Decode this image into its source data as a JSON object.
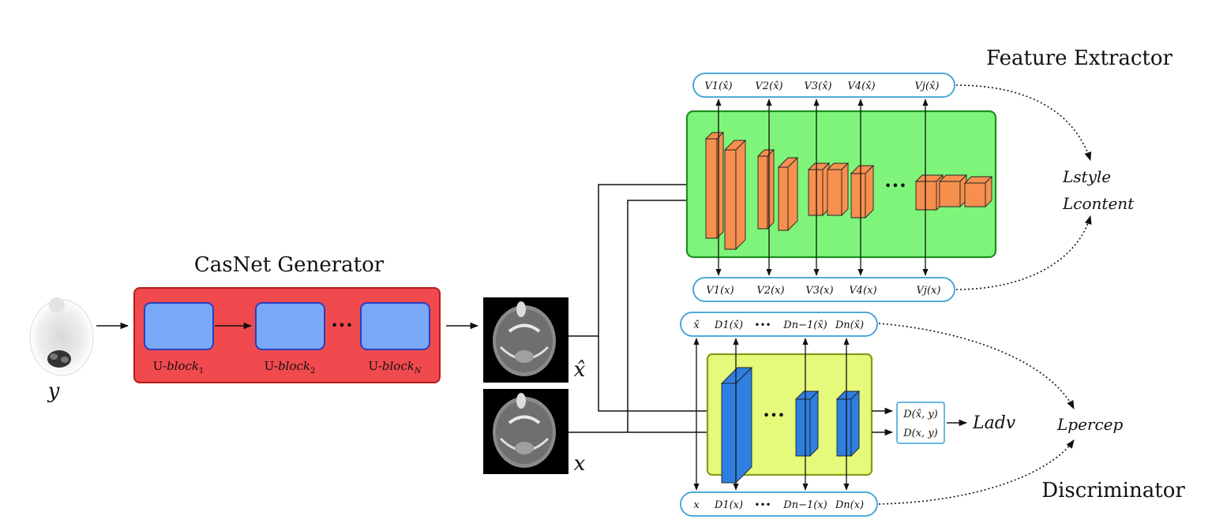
{
  "titles": {
    "generator": "CasNet Generator",
    "feature_extractor": "Feature Extractor",
    "discriminator": "Discriminator"
  },
  "inputs": {
    "y": "y",
    "x_hat": "x̂",
    "x": "x"
  },
  "generator": {
    "blocks": [
      {
        "base": "U-",
        "name": "block",
        "sub": "1"
      },
      {
        "base": "U-",
        "name": "block",
        "sub": "2"
      },
      {
        "base": "U-",
        "name": "block",
        "sub": "N"
      }
    ],
    "ellipsis": "•••"
  },
  "feature_extractor": {
    "top_pill": [
      "V1(x̂)",
      "V2(x̂)",
      "V3(x̂)",
      "V4(x̂)",
      "Vj(x̂)"
    ],
    "bottom_pill": [
      "V1(x)",
      "V2(x)",
      "V3(x)",
      "V4(x)",
      "Vj(x)"
    ],
    "ellipsis": "•••"
  },
  "discriminator": {
    "top_pill": [
      "x̂",
      "D1(x̂)",
      "•••",
      "Dn−1(x̂)",
      "Dn(x̂)"
    ],
    "bottom_pill": [
      "x",
      "D1(x)",
      "•••",
      "Dn−1(x)",
      "Dn(x)"
    ],
    "outputs": [
      "D(x̂, y)",
      "D(x, y)"
    ],
    "ellipsis": "•••"
  },
  "losses": {
    "style": "Lstyle",
    "content": "Lcontent",
    "adv": "Ladv",
    "percep": "Lpercep"
  },
  "colors": {
    "generator_bg": "#f0494e",
    "ublock": "#7aa8f8",
    "feature_bg": "#7ef57a",
    "feature_layer": "#f7904f",
    "disc_bg": "#e5f97a",
    "disc_layer": "#2e7fe0",
    "pill_border": "#3a9fd6"
  }
}
